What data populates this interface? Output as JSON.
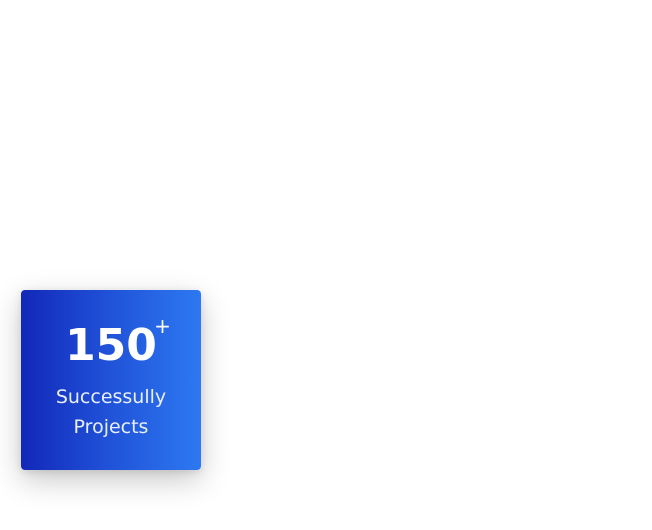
{
  "stat_card": {
    "number": "150",
    "suffix": "+",
    "label": "Successully Projects",
    "gradient_start": "#1228b8",
    "gradient_end": "#2d79f2",
    "text_color": "#ffffff"
  }
}
